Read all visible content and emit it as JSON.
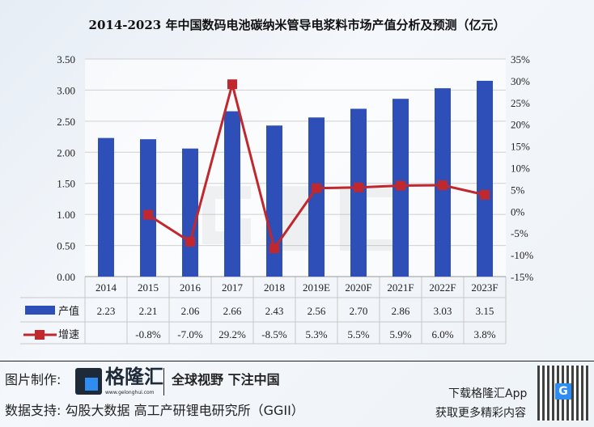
{
  "chart_data": {
    "type": "bar+line",
    "title": "2014-2023 年中国数码电池碳纳米管导电浆料市场产值分析及预测（亿元）",
    "categories": [
      "2014",
      "2015",
      "2016",
      "2017",
      "2018",
      "2019E",
      "2020F",
      "2021F",
      "2022F",
      "2023F"
    ],
    "series": [
      {
        "name": "产值",
        "type": "bar",
        "axis": "left",
        "color": "#2e4fb8",
        "values": [
          2.23,
          2.21,
          2.06,
          2.66,
          2.43,
          2.56,
          2.7,
          2.86,
          3.03,
          3.15
        ],
        "labels": [
          "2.23",
          "2.21",
          "2.06",
          "2.66",
          "2.43",
          "2.56",
          "2.70",
          "2.86",
          "3.03",
          "3.15"
        ]
      },
      {
        "name": "增速",
        "type": "line",
        "axis": "right",
        "color": "#c0282d",
        "values": [
          null,
          -0.8,
          -7.0,
          29.2,
          -8.5,
          5.3,
          5.5,
          5.9,
          6.0,
          3.8
        ],
        "labels": [
          "",
          "-0.8%",
          "-7.0%",
          "29.2%",
          "-8.5%",
          "5.3%",
          "5.5%",
          "5.9%",
          "6.0%",
          "3.8%"
        ]
      }
    ],
    "left_axis": {
      "range": [
        0,
        3.5
      ],
      "ticks": [
        "0.00",
        "0.50",
        "1.00",
        "1.50",
        "2.00",
        "2.50",
        "3.00",
        "3.50"
      ]
    },
    "right_axis": {
      "range": [
        -15,
        35
      ],
      "ticks": [
        "-15%",
        "-10%",
        "-5%",
        "0%",
        "5%",
        "10%",
        "15%",
        "20%",
        "25%",
        "30%",
        "35%"
      ]
    },
    "grid": true,
    "legend": "data table below chart"
  },
  "watermark": "格隆汇 www.gelonghui.com",
  "footer": {
    "made_by_label": "图片制作:",
    "brand": "格隆汇",
    "brand_url": "www.gelonghui.com",
    "slogan": "全球视野 下注中国",
    "data_support": "数据支持:  勾股大数据 高工产研锂电研究所（GGII）",
    "download": "下载格隆汇App",
    "more": "获取更多精彩内容"
  }
}
